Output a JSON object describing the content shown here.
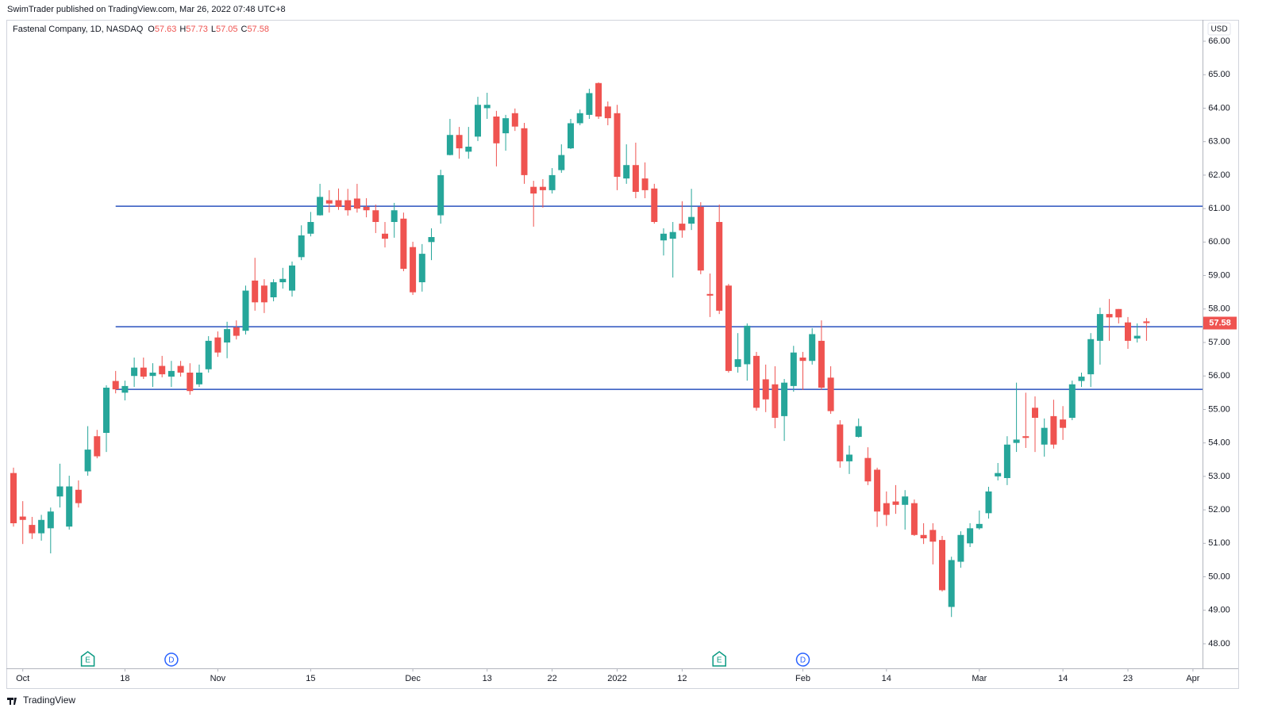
{
  "header": {
    "publisher": "SwimTrader published on TradingView.com, Mar 26, 2022 07:48 UTC+8",
    "brand": "TradingView"
  },
  "chart_data": {
    "type": "candlestick",
    "title": "Fastenal Company, 1D, NASDAQ",
    "legend_values": [
      {
        "label": "O",
        "value": 57.63
      },
      {
        "label": "H",
        "value": 57.73
      },
      {
        "label": "L",
        "value": 57.05
      },
      {
        "label": "C",
        "value": 57.58
      }
    ],
    "currency": "USD",
    "up_color": "#26a69a",
    "down_color": "#ef5350",
    "line_color": "#2a52be",
    "open": [
      53.1,
      51.8,
      51.55,
      51.3,
      51.45,
      52.4,
      51.5,
      52.6,
      53.15,
      54.2,
      54.3,
      55.85,
      55.5,
      56.0,
      56.25,
      56.0,
      56.3,
      55.98,
      56.3,
      56.1,
      55.75,
      56.2,
      57.15,
      57.0,
      57.45,
      57.35,
      58.85,
      58.7,
      58.35,
      58.8,
      58.55,
      59.55,
      60.25,
      60.8,
      61.25,
      61.25,
      61.25,
      61.3,
      61.05,
      60.95,
      60.25,
      60.6,
      60.7,
      59.85,
      58.8,
      60.0,
      60.8,
      62.6,
      63.2,
      62.7,
      63.15,
      64.0,
      63.75,
      63.25,
      63.85,
      63.4,
      61.65,
      61.65,
      61.55,
      62.15,
      62.8,
      63.55,
      63.8,
      64.75,
      64.05,
      63.85,
      61.9,
      62.3,
      61.9,
      61.6,
      60.05,
      60.1,
      60.55,
      60.55,
      61.05,
      58.45,
      60.6,
      58.7,
      56.27,
      56.35,
      56.6,
      55.9,
      55.75,
      54.8,
      55.7,
      56.55,
      56.45,
      57.05,
      55.95,
      54.55,
      53.45,
      54.18,
      53.55,
      53.2,
      52.2,
      52.25,
      52.15,
      52.2,
      51.25,
      51.4,
      51.1,
      49.1,
      50.45,
      51.0,
      51.45,
      51.9,
      53.0,
      52.95,
      54.0,
      54.2,
      55.05,
      53.95,
      54.8,
      54.7,
      54.75,
      55.85,
      56.05,
      57.05,
      57.85,
      58.0,
      57.6,
      57.12,
      57.63
    ],
    "high": [
      53.26,
      52.26,
      51.79,
      51.85,
      52.07,
      53.38,
      53.02,
      52.88,
      54.5,
      54.39,
      55.72,
      56.15,
      55.86,
      56.55,
      56.55,
      56.38,
      56.6,
      56.45,
      56.45,
      56.38,
      56.34,
      57.19,
      57.33,
      57.62,
      57.66,
      58.7,
      59.53,
      58.89,
      58.89,
      59.23,
      59.42,
      60.5,
      60.9,
      61.74,
      61.55,
      61.6,
      61.59,
      61.74,
      61.31,
      61.12,
      60.6,
      61.17,
      60.88,
      60.01,
      59.94,
      60.41,
      62.16,
      63.68,
      63.44,
      63.44,
      64.34,
      64.46,
      63.92,
      63.8,
      63.99,
      63.56,
      61.83,
      61.88,
      62.21,
      62.92,
      63.68,
      63.96,
      64.58,
      64.77,
      64.2,
      64.1,
      62.92,
      62.97,
      62.38,
      61.74,
      60.41,
      60.6,
      61.22,
      61.59,
      61.19,
      59.06,
      61.12,
      58.75,
      57.28,
      57.57,
      56.72,
      56.34,
      56.29,
      55.91,
      56.9,
      56.72,
      57.43,
      57.66,
      56.29,
      54.68,
      53.92,
      54.73,
      53.87,
      53.26,
      52.55,
      52.74,
      52.59,
      52.31,
      51.6,
      51.6,
      51.22,
      50.6,
      51.36,
      51.6,
      51.98,
      52.69,
      53.4,
      54.2,
      55.8,
      55.5,
      55.39,
      54.73,
      55.29,
      55.1,
      55.86,
      56.1,
      57.28,
      58.04,
      58.3,
      58.0,
      57.76,
      57.57,
      57.73
    ],
    "low": [
      51.5,
      50.98,
      51.13,
      51.08,
      50.7,
      52.07,
      51.41,
      52.07,
      53.02,
      53.54,
      53.73,
      55.48,
      55.27,
      55.67,
      55.91,
      55.67,
      55.96,
      55.67,
      55.98,
      55.44,
      55.67,
      56.1,
      56.57,
      56.53,
      57.09,
      57.24,
      57.95,
      57.88,
      58.23,
      58.61,
      58.37,
      59.46,
      60.17,
      60.79,
      60.88,
      60.96,
      60.79,
      60.88,
      60.74,
      60.27,
      59.84,
      60.13,
      59.13,
      58.42,
      58.52,
      59.46,
      60.55,
      62.59,
      62.49,
      62.49,
      63.02,
      63.68,
      62.26,
      62.73,
      63.32,
      61.74,
      60.46,
      61.03,
      61.45,
      62.07,
      62.78,
      63.49,
      63.68,
      63.68,
      63.49,
      61.55,
      61.74,
      61.31,
      61.31,
      60.55,
      59.6,
      58.94,
      60.13,
      60.36,
      59.04,
      57.76,
      57.85,
      56.1,
      56.1,
      55.86,
      54.96,
      54.92,
      54.44,
      54.06,
      55.53,
      55.58,
      56.34,
      55.58,
      54.87,
      53.26,
      53.07,
      54.16,
      52.74,
      51.49,
      51.52,
      51.88,
      51.41,
      51.22,
      50.98,
      50.37,
      49.56,
      48.8,
      50.27,
      50.89,
      51.41,
      51.74,
      52.88,
      52.74,
      53.73,
      53.85,
      53.73,
      53.59,
      53.83,
      54.09,
      54.68,
      55.67,
      55.67,
      56.34,
      57.05,
      57.57,
      56.81,
      57.0,
      57.05
    ],
    "close": [
      51.6,
      51.7,
      51.3,
      51.7,
      51.95,
      52.7,
      52.7,
      52.2,
      53.8,
      53.6,
      55.65,
      55.6,
      55.7,
      56.25,
      55.98,
      56.1,
      56.05,
      56.15,
      56.1,
      55.55,
      56.1,
      57.05,
      56.7,
      57.4,
      57.2,
      58.55,
      58.2,
      58.2,
      58.8,
      58.9,
      59.3,
      60.2,
      60.6,
      61.35,
      61.15,
      61.05,
      60.95,
      61.0,
      60.95,
      60.6,
      60.1,
      60.95,
      59.2,
      58.5,
      59.65,
      60.15,
      62.0,
      63.2,
      62.8,
      62.85,
      64.1,
      64.1,
      62.95,
      63.7,
      63.45,
      62.0,
      61.45,
      61.55,
      62.0,
      62.6,
      63.55,
      63.85,
      64.45,
      63.75,
      63.7,
      61.95,
      62.3,
      61.5,
      61.55,
      60.6,
      60.25,
      60.3,
      60.35,
      60.75,
      59.15,
      58.4,
      57.95,
      56.15,
      56.5,
      57.5,
      55.05,
      55.3,
      54.75,
      55.8,
      56.7,
      56.45,
      57.25,
      55.65,
      54.95,
      53.45,
      53.65,
      54.5,
      52.85,
      51.95,
      51.85,
      52.15,
      52.4,
      51.25,
      51.15,
      51.05,
      49.6,
      50.5,
      51.25,
      51.45,
      51.58,
      52.55,
      53.1,
      53.95,
      54.1,
      54.15,
      54.75,
      54.45,
      53.95,
      54.45,
      55.75,
      55.98,
      57.1,
      57.85,
      57.75,
      57.75,
      57.05,
      57.2,
      57.58
    ],
    "horizontal_lines": [
      61.07,
      57.47,
      55.6
    ],
    "xticks": [
      {
        "value": 1,
        "label": "Oct"
      },
      {
        "value": 12,
        "label": "18"
      },
      {
        "value": 22,
        "label": "Nov"
      },
      {
        "value": 32,
        "label": "15"
      },
      {
        "value": 43,
        "label": "Dec"
      },
      {
        "value": 51,
        "label": "13"
      },
      {
        "value": 58,
        "label": "22"
      },
      {
        "value": 65,
        "label": "2022"
      },
      {
        "value": 72,
        "label": "12"
      },
      {
        "value": 85,
        "label": "Feb"
      },
      {
        "value": 94,
        "label": "14"
      },
      {
        "value": 104,
        "label": "Mar"
      },
      {
        "value": 113,
        "label": "14"
      },
      {
        "value": 120,
        "label": "23"
      },
      {
        "value": 127,
        "label": "Apr"
      }
    ],
    "ylim": [
      47.25,
      66.5
    ],
    "yticks": [
      {
        "value": 48,
        "label": "48.00"
      },
      {
        "value": 49,
        "label": "49.00"
      },
      {
        "value": 50,
        "label": "50.00"
      },
      {
        "value": 51,
        "label": "51.00"
      },
      {
        "value": 52,
        "label": "52.00"
      },
      {
        "value": 53,
        "label": "53.00"
      },
      {
        "value": 54,
        "label": "54.00"
      },
      {
        "value": 55,
        "label": "55.00"
      },
      {
        "value": 56,
        "label": "56.00"
      },
      {
        "value": 57,
        "label": "57.00"
      },
      {
        "value": 58,
        "label": "58.00"
      },
      {
        "value": 59,
        "label": "59.00"
      },
      {
        "value": 60,
        "label": "60.00"
      },
      {
        "value": 61,
        "label": "61.00"
      },
      {
        "value": 62,
        "label": "62.00"
      },
      {
        "value": 63,
        "label": "63.00"
      },
      {
        "value": 64,
        "label": "64.00"
      },
      {
        "value": 65,
        "label": "65.00"
      },
      {
        "value": 66,
        "label": "66.00"
      }
    ],
    "events": [
      {
        "label": "E",
        "bar": 8
      },
      {
        "label": "D",
        "bar": 17
      },
      {
        "label": "E",
        "bar": 76
      },
      {
        "label": "D",
        "bar": 85
      }
    ]
  }
}
